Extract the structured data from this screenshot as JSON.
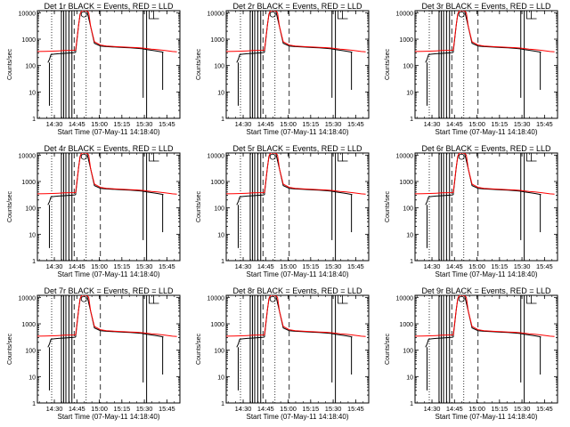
{
  "figure": {
    "xlabel_template": "Start Time (07-May-11 14:18:40)",
    "ylabel": "Counts/sec",
    "title_suffix": " BLACK = Events, RED = LLD",
    "colors": {
      "events": "#000000",
      "lld": "#ff0000",
      "axes": "#000000",
      "background": "#ffffff"
    }
  },
  "chart_data": [
    {
      "type": "line",
      "title": "Det 1r BLACK = Events, RED = LLD",
      "row": 0,
      "col": 0
    },
    {
      "type": "line",
      "title": "Det 2r BLACK = Events, RED = LLD",
      "row": 0,
      "col": 1
    },
    {
      "type": "line",
      "title": "Det 3r BLACK = Events, RED = LLD",
      "row": 0,
      "col": 2
    },
    {
      "type": "line",
      "title": "Det 4r BLACK = Events, RED = LLD",
      "row": 1,
      "col": 0
    },
    {
      "type": "line",
      "title": "Det 5r BLACK = Events, RED = LLD",
      "row": 1,
      "col": 1
    },
    {
      "type": "line",
      "title": "Det 6r BLACK = Events, RED = LLD",
      "row": 1,
      "col": 2
    },
    {
      "type": "line",
      "title": "Det 7r BLACK = Events, RED = LLD",
      "row": 2,
      "col": 0
    },
    {
      "type": "line",
      "title": "Det 8r BLACK = Events, RED = LLD",
      "row": 2,
      "col": 1
    },
    {
      "type": "line",
      "title": "Det 9r BLACK = Events, RED = LLD",
      "row": 2,
      "col": 2
    }
  ],
  "shared_axes": {
    "xlabel": "Start Time (07-May-11 14:18:40)",
    "ylabel": "Counts/sec",
    "x_unit": "minutes after 14:18:40",
    "xlim": [
      0,
      95
    ],
    "ylim": [
      1,
      12000
    ],
    "yscale": "log",
    "xticks": [
      {
        "label": "14:30",
        "value": 11.3
      },
      {
        "label": "14:45",
        "value": 26.3
      },
      {
        "label": "15:00",
        "value": 41.3
      },
      {
        "label": "15:15",
        "value": 56.3
      },
      {
        "label": "15:30",
        "value": 71.3
      },
      {
        "label": "15:45",
        "value": 86.3
      }
    ],
    "yticks": [
      {
        "label": "1",
        "value": 1
      },
      {
        "label": "10",
        "value": 10
      },
      {
        "label": "100",
        "value": 100
      },
      {
        "label": "1000",
        "value": 1000
      },
      {
        "label": "10000",
        "value": 10000
      }
    ],
    "grid": false,
    "legend": "none",
    "markers": {
      "dotted_x": [
        9.5,
        32.5
      ],
      "dashed_x": [
        24.5,
        42.0
      ],
      "solid_x": [
        16,
        17.5,
        19,
        21,
        23,
        70.5,
        72.8
      ],
      "bracket_x": [
        74.5,
        77.5
      ],
      "circle": {
        "x": 31.0,
        "y": 11000
      }
    }
  },
  "series": {
    "lld": {
      "name": "LLD",
      "x": [
        0,
        5,
        10,
        14,
        18,
        22,
        25.5,
        27.5,
        28.5,
        29.5,
        31,
        33,
        34.2,
        35.5,
        38,
        42,
        46,
        52,
        58,
        62,
        66,
        70,
        73,
        76,
        80,
        85,
        90,
        93
      ],
      "y": [
        340,
        345,
        350,
        360,
        370,
        375,
        380,
        3500,
        9000,
        12000,
        12000,
        12000,
        10000,
        3000,
        800,
        600,
        550,
        520,
        500,
        490,
        480,
        460,
        440,
        420,
        400,
        370,
        340,
        330
      ]
    },
    "events": {
      "name": "Events",
      "x": [
        7,
        8,
        9,
        11,
        14,
        18,
        22,
        25,
        25.5,
        27.5,
        28.5,
        29.5,
        33,
        35.5,
        38,
        42,
        46,
        52,
        58,
        62,
        66,
        70,
        73,
        76,
        80,
        84
      ],
      "y": [
        130,
        170,
        260,
        270,
        280,
        290,
        300,
        310,
        320,
        3500,
        9000,
        12000,
        12000,
        3000,
        700,
        550,
        520,
        500,
        480,
        470,
        450,
        430,
        400,
        380,
        350,
        320
      ]
    }
  }
}
